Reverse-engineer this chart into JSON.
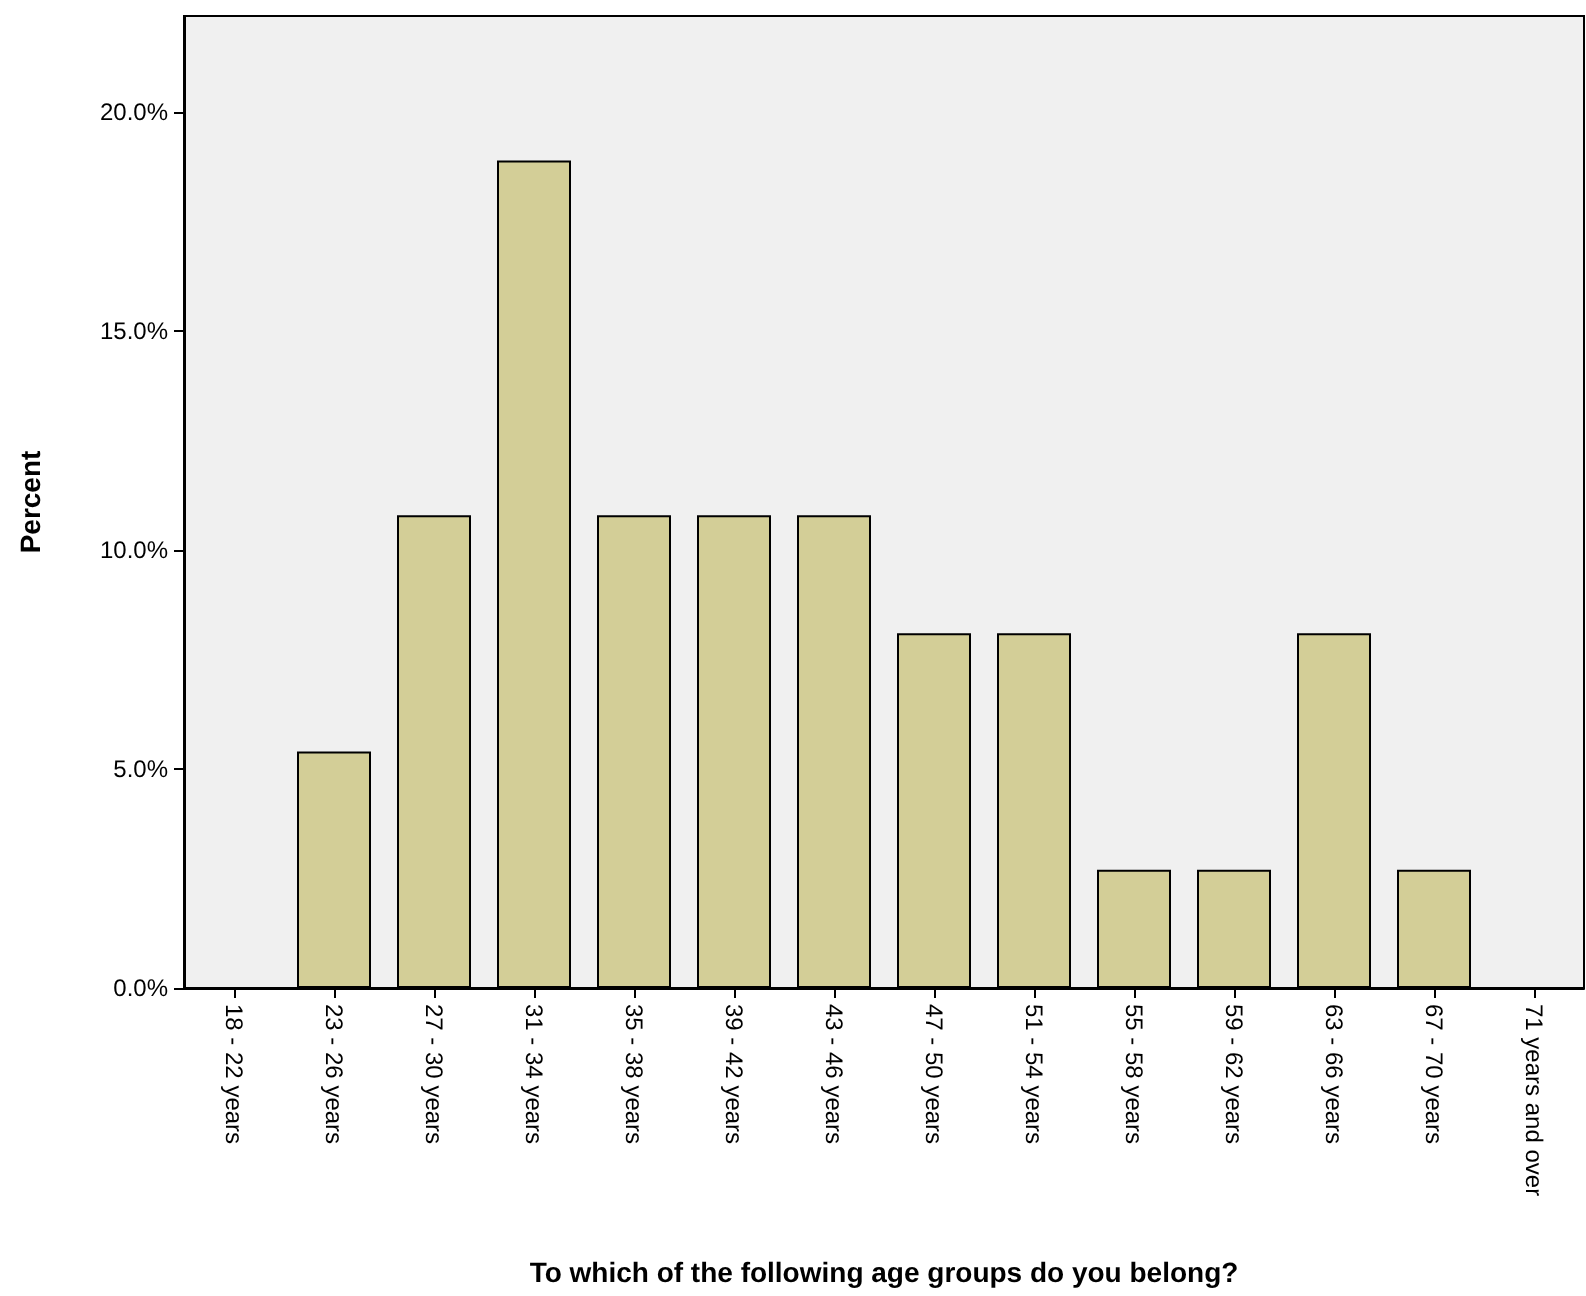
{
  "chart_data": {
    "type": "bar",
    "xlabel": "To which of the following age groups do you belong?",
    "ylabel": "Percent",
    "categories": [
      "18 - 22 years",
      "23 - 26 years",
      "27 - 30 years",
      "31 - 34 years",
      "35 - 38 years",
      "39 - 42 years",
      "43 - 46 years",
      "47 - 50 years",
      "51 - 54 years",
      "55 - 58 years",
      "59 - 62 years",
      "63 - 66 years",
      "67 - 70 years",
      "71 years and over"
    ],
    "values": [
      0,
      5.4,
      10.8,
      18.9,
      10.8,
      10.8,
      10.8,
      8.1,
      8.1,
      2.7,
      2.7,
      8.1,
      2.7,
      0
    ],
    "color": "#d3ce97",
    "ylim": [
      0,
      22.2
    ],
    "yticks": [
      {
        "value": 0,
        "label": "0.0%"
      },
      {
        "value": 5,
        "label": "5.0%"
      },
      {
        "value": 10,
        "label": "10.0%"
      },
      {
        "value": 15,
        "label": "15.0%"
      },
      {
        "value": 20,
        "label": "20.0%"
      }
    ],
    "grid": false
  }
}
